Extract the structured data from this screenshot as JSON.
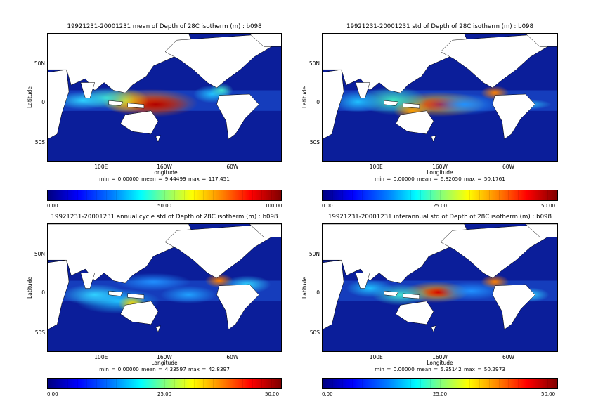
{
  "panels": [
    {
      "title": "19921231-20001231 mean of Depth of 28C isotherm (m) : b098",
      "ylabel": "Latitude",
      "xlabel": "Longitude",
      "yticks": [
        "50N",
        "0",
        "50S"
      ],
      "xticks": [
        "100E",
        "160W",
        "60W"
      ],
      "stats": "min = 0.00000     mean = 9.44499     max = 117.451",
      "cbar_ticks": [
        "0.00",
        "50.00",
        "100.00"
      ]
    },
    {
      "title": "19921231-20001231 std of Depth of 28C isotherm (m) : b098",
      "ylabel": "Latitude",
      "xlabel": "Longitude",
      "yticks": [
        "50N",
        "0",
        "50S"
      ],
      "xticks": [
        "100E",
        "160W",
        "60W"
      ],
      "stats": "min = 0.00000     mean = 6.82050     max = 50.1761",
      "cbar_ticks": [
        "0.00",
        "25.00",
        "50.00"
      ]
    },
    {
      "title": "19921231-20001231 annual cycle std of Depth of 28C isotherm (m) : b098",
      "ylabel": "Latitude",
      "xlabel": "Longitude",
      "yticks": [
        "50N",
        "0",
        "50S"
      ],
      "xticks": [
        "100E",
        "160W",
        "60W"
      ],
      "stats": "min = 0.00000     mean = 4.33597     max = 42.8397",
      "cbar_ticks": [
        "0.00",
        "25.00",
        "50.00"
      ]
    },
    {
      "title": "19921231-20001231 interannual std of Depth of 28C isotherm (m) : b098",
      "ylabel": "Latitude",
      "xlabel": "Longitude",
      "yticks": [
        "50N",
        "0",
        "50S"
      ],
      "xticks": [
        "100E",
        "160W",
        "60W"
      ],
      "stats": "min = 0.00000     mean = 5.95142     max = 50.2973",
      "cbar_ticks": [
        "0.00",
        "25.00",
        "50.00"
      ]
    }
  ],
  "chart_data": [
    {
      "type": "heatmap",
      "title": "19921231-20001231 mean of Depth of 28C isotherm (m) : b098",
      "xlabel": "Longitude",
      "ylabel": "Latitude",
      "colorbar_range": [
        0,
        100
      ],
      "min": 0.0,
      "mean": 9.44499,
      "max": 117.451
    },
    {
      "type": "heatmap",
      "title": "19921231-20001231 std of Depth of 28C isotherm (m) : b098",
      "xlabel": "Longitude",
      "ylabel": "Latitude",
      "colorbar_range": [
        0,
        50
      ],
      "min": 0.0,
      "mean": 6.8205,
      "max": 50.1761
    },
    {
      "type": "heatmap",
      "title": "19921231-20001231 annual cycle std of Depth of 28C isotherm (m) : b098",
      "xlabel": "Longitude",
      "ylabel": "Latitude",
      "colorbar_range": [
        0,
        50
      ],
      "min": 0.0,
      "mean": 4.33597,
      "max": 42.8397
    },
    {
      "type": "heatmap",
      "title": "19921231-20001231 interannual std of Depth of 28C isotherm (m) : b098",
      "xlabel": "Longitude",
      "ylabel": "Latitude",
      "colorbar_range": [
        0,
        50
      ],
      "min": 0.0,
      "mean": 5.95142,
      "max": 50.2973
    }
  ],
  "colors": {
    "ocean": "#0b1e9a",
    "land": "#ffffff"
  }
}
